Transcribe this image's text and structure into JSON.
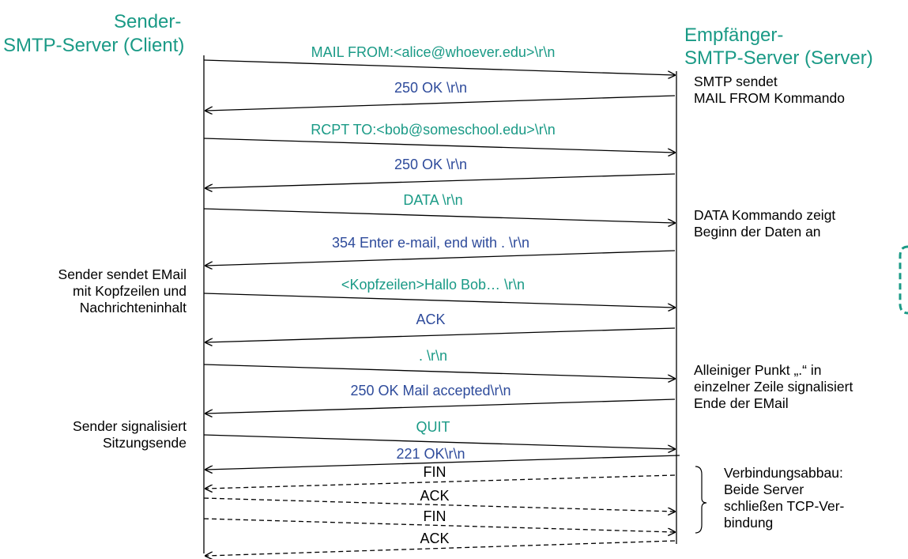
{
  "colors": {
    "client_color": "#1a9a86",
    "server_color": "#2e4b9b",
    "line_color": "#000000"
  },
  "participants": {
    "sender_line1": "Sender-",
    "sender_line2": "SMTP-Server (Client)",
    "receiver_line1": "Empfänger-",
    "receiver_line2": "SMTP-Server (Server)"
  },
  "messages": [
    {
      "label": "MAIL FROM:<alice@whoever.edu>\\r\\n",
      "direction": "to-server",
      "style": "solid"
    },
    {
      "label": "250 OK \\r\\n",
      "direction": "to-client",
      "style": "solid"
    },
    {
      "label": "RCPT TO:<bob@someschool.edu>\\r\\n",
      "direction": "to-server",
      "style": "solid"
    },
    {
      "label": "250 OK \\r\\n",
      "direction": "to-client",
      "style": "solid"
    },
    {
      "label": "DATA \\r\\n",
      "direction": "to-server",
      "style": "solid"
    },
    {
      "label": "354 Enter e-mail, end with . \\r\\n",
      "direction": "to-client",
      "style": "solid"
    },
    {
      "label": "<Kopfzeilen>Hallo Bob… \\r\\n",
      "direction": "to-server",
      "style": "solid"
    },
    {
      "label": "ACK",
      "direction": "to-client",
      "style": "solid"
    },
    {
      "label": ". \\r\\n",
      "direction": "to-server",
      "style": "solid"
    },
    {
      "label": "250 OK Mail accepted\\r\\n",
      "direction": "to-client",
      "style": "solid"
    },
    {
      "label": "QUIT",
      "direction": "to-server",
      "style": "solid"
    },
    {
      "label": "221 OK\\r\\n",
      "direction": "to-client",
      "style": "solid"
    },
    {
      "label": "FIN",
      "direction": "to-client",
      "style": "dashed"
    },
    {
      "label": "ACK",
      "direction": "to-server",
      "style": "dashed"
    },
    {
      "label": "FIN",
      "direction": "to-server",
      "style": "dashed"
    },
    {
      "label": "ACK",
      "direction": "to-client",
      "style": "dashed"
    }
  ],
  "annotations": {
    "server_mail_from": [
      "SMTP sendet",
      "MAIL FROM Kommando"
    ],
    "server_data": [
      "DATA Kommando zeigt",
      "Beginn der Daten an"
    ],
    "client_sends": [
      "Sender sendet EMail",
      "mit Kopfzeilen und",
      "Nachrichteninhalt"
    ],
    "server_dot": [
      "Alleiniger Punkt „.“ in",
      "einzelner Zeile signalisiert",
      "Ende der EMail"
    ],
    "client_quit": [
      "Sender signalisiert",
      "Sitzungsende"
    ],
    "teardown": [
      "Verbindungsabbau:",
      "Beide Server",
      "schließen TCP-Ver-",
      "bindung"
    ]
  }
}
